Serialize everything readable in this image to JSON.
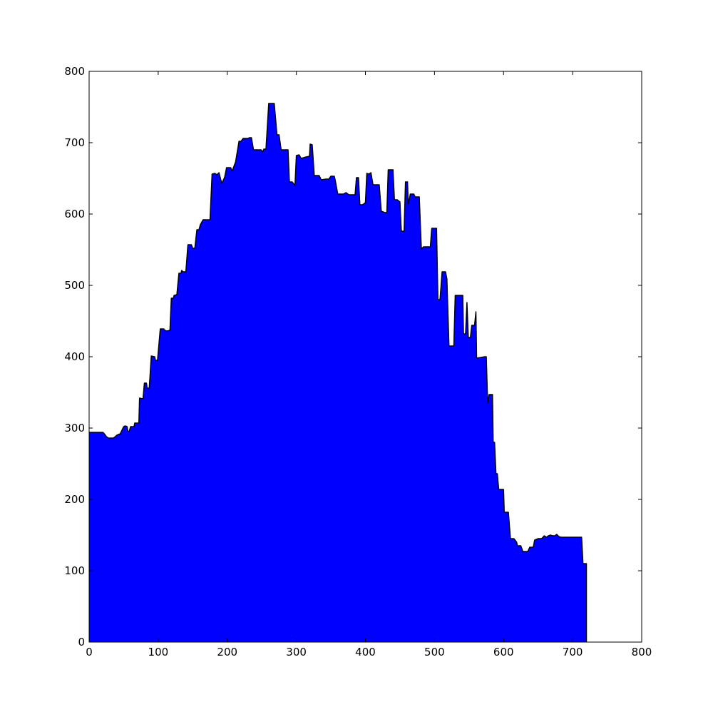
{
  "chart_data": {
    "type": "area",
    "title": "",
    "xlabel": "",
    "ylabel": "",
    "xlim": [
      0,
      800
    ],
    "ylim": [
      0,
      800
    ],
    "grid": false,
    "legend": "none",
    "xticks": [
      "0",
      "100",
      "200",
      "300",
      "400",
      "500",
      "600",
      "700",
      "800"
    ],
    "yticks": [
      "0",
      "100",
      "200",
      "300",
      "400",
      "500",
      "600",
      "700",
      "800"
    ],
    "series": [
      {
        "fill_color": "#0000ff",
        "line_color": "#000000",
        "points": [
          [
            0,
            294
          ],
          [
            20,
            294
          ],
          [
            22,
            292
          ],
          [
            25,
            288
          ],
          [
            28,
            286
          ],
          [
            35,
            286
          ],
          [
            38,
            288
          ],
          [
            40,
            290
          ],
          [
            45,
            292
          ],
          [
            48,
            298
          ],
          [
            50,
            302
          ],
          [
            52,
            303
          ],
          [
            55,
            302
          ],
          [
            56,
            296
          ],
          [
            58,
            295
          ],
          [
            60,
            302
          ],
          [
            65,
            302
          ],
          [
            66,
            307
          ],
          [
            72,
            307
          ],
          [
            73,
            342
          ],
          [
            78,
            341
          ],
          [
            80,
            363
          ],
          [
            83,
            363
          ],
          [
            84,
            356
          ],
          [
            87,
            356
          ],
          [
            90,
            401
          ],
          [
            95,
            400
          ],
          [
            96,
            395
          ],
          [
            99,
            395
          ],
          [
            103,
            439
          ],
          [
            108,
            439
          ],
          [
            110,
            437
          ],
          [
            112,
            436
          ],
          [
            117,
            437
          ],
          [
            119,
            482
          ],
          [
            122,
            482
          ],
          [
            123,
            486
          ],
          [
            127,
            487
          ],
          [
            130,
            517
          ],
          [
            133,
            517
          ],
          [
            134,
            521
          ],
          [
            136,
            519
          ],
          [
            140,
            519
          ],
          [
            143,
            557
          ],
          [
            148,
            557
          ],
          [
            150,
            552
          ],
          [
            153,
            552
          ],
          [
            156,
            578
          ],
          [
            159,
            578
          ],
          [
            161,
            585
          ],
          [
            165,
            592
          ],
          [
            175,
            592
          ],
          [
            178,
            656
          ],
          [
            182,
            657
          ],
          [
            185,
            655
          ],
          [
            188,
            658
          ],
          [
            192,
            643
          ],
          [
            196,
            651
          ],
          [
            199,
            665
          ],
          [
            205,
            665
          ],
          [
            207,
            660
          ],
          [
            210,
            668
          ],
          [
            212,
            673
          ],
          [
            217,
            702
          ],
          [
            220,
            702
          ],
          [
            223,
            706
          ],
          [
            230,
            706
          ],
          [
            232,
            707
          ],
          [
            235,
            707
          ],
          [
            238,
            690
          ],
          [
            249,
            690
          ],
          [
            251,
            687
          ],
          [
            253,
            691
          ],
          [
            256,
            691
          ],
          [
            260,
            755
          ],
          [
            268,
            755
          ],
          [
            272,
            711
          ],
          [
            275,
            711
          ],
          [
            278,
            690
          ],
          [
            288,
            690
          ],
          [
            290,
            645
          ],
          [
            294,
            645
          ],
          [
            298,
            640
          ],
          [
            300,
            682
          ],
          [
            304,
            683
          ],
          [
            307,
            678
          ],
          [
            314,
            680
          ],
          [
            319,
            681
          ],
          [
            320,
            698
          ],
          [
            323,
            697
          ],
          [
            326,
            654
          ],
          [
            333,
            654
          ],
          [
            336,
            648
          ],
          [
            343,
            649
          ],
          [
            347,
            649
          ],
          [
            350,
            653
          ],
          [
            355,
            653
          ],
          [
            357,
            644
          ],
          [
            360,
            628
          ],
          [
            368,
            628
          ],
          [
            372,
            630
          ],
          [
            376,
            627
          ],
          [
            385,
            627
          ],
          [
            387,
            651
          ],
          [
            390,
            651
          ],
          [
            392,
            613
          ],
          [
            396,
            613
          ],
          [
            400,
            616
          ],
          [
            402,
            657
          ],
          [
            405,
            656
          ],
          [
            408,
            658
          ],
          [
            411,
            641
          ],
          [
            420,
            641
          ],
          [
            423,
            604
          ],
          [
            428,
            602
          ],
          [
            431,
            602
          ],
          [
            433,
            662
          ],
          [
            440,
            662
          ],
          [
            442,
            620
          ],
          [
            446,
            620
          ],
          [
            450,
            617
          ],
          [
            452,
            576
          ],
          [
            456,
            576
          ],
          [
            458,
            645
          ],
          [
            461,
            645
          ],
          [
            462,
            614
          ],
          [
            465,
            628
          ],
          [
            470,
            628
          ],
          [
            472,
            624
          ],
          [
            478,
            624
          ],
          [
            481,
            551
          ],
          [
            484,
            554
          ],
          [
            494,
            554
          ],
          [
            496,
            580
          ],
          [
            503,
            580
          ],
          [
            505,
            480
          ],
          [
            508,
            480
          ],
          [
            511,
            519
          ],
          [
            516,
            519
          ],
          [
            518,
            509
          ],
          [
            521,
            415
          ],
          [
            528,
            415
          ],
          [
            530,
            486
          ],
          [
            541,
            486
          ],
          [
            542,
            432
          ],
          [
            545,
            432
          ],
          [
            547,
            476
          ],
          [
            549,
            427
          ],
          [
            552,
            427
          ],
          [
            554,
            444
          ],
          [
            558,
            444
          ],
          [
            560,
            463
          ],
          [
            561,
            398
          ],
          [
            573,
            400
          ],
          [
            575,
            400
          ],
          [
            577,
            335
          ],
          [
            579,
            347
          ],
          [
            584,
            347
          ],
          [
            585,
            280
          ],
          [
            587,
            280
          ],
          [
            589,
            236
          ],
          [
            591,
            236
          ],
          [
            593,
            214
          ],
          [
            600,
            214
          ],
          [
            601,
            182
          ],
          [
            607,
            182
          ],
          [
            610,
            145
          ],
          [
            615,
            145
          ],
          [
            619,
            140
          ],
          [
            620,
            135
          ],
          [
            625,
            135
          ],
          [
            628,
            127
          ],
          [
            635,
            127
          ],
          [
            638,
            133
          ],
          [
            643,
            133
          ],
          [
            645,
            143
          ],
          [
            650,
            145
          ],
          [
            655,
            145
          ],
          [
            659,
            149
          ],
          [
            662,
            147
          ],
          [
            665,
            149
          ],
          [
            668,
            150
          ],
          [
            671,
            149
          ],
          [
            674,
            149
          ],
          [
            677,
            151
          ],
          [
            680,
            148
          ],
          [
            683,
            147
          ],
          [
            708,
            147
          ],
          [
            710,
            147
          ],
          [
            713,
            147
          ],
          [
            715,
            110
          ],
          [
            720,
            110
          ]
        ]
      }
    ]
  }
}
